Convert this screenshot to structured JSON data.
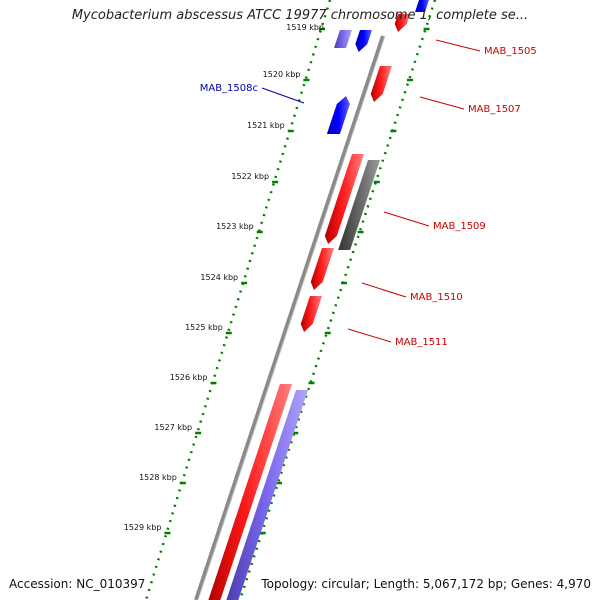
{
  "title": "Mycobacterium abscessus ATCC 19977 chromosome 1, complete se...",
  "footer": {
    "accession": "Accession: NC_010397",
    "summary": "Topology: circular; Length: 5,067,172 bp; Genes: 4,970"
  },
  "colors": {
    "forward_cds": "#ff0000",
    "reverse_cds": "#7b68ee",
    "pseudo": "#666666",
    "other": "#0000ff",
    "ticks": "#008000",
    "label_forward": "#cc0000",
    "label_other": "#0000aa"
  },
  "ticks": [
    {
      "label": "1519 kbp"
    },
    {
      "label": "1520 kbp"
    },
    {
      "label": "1521 kbp"
    },
    {
      "label": "1522 kbp"
    },
    {
      "label": "1523 kbp"
    },
    {
      "label": "1524 kbp"
    },
    {
      "label": "1525 kbp"
    },
    {
      "label": "1526 kbp"
    },
    {
      "label": "1527 kbp"
    },
    {
      "label": "1528 kbp"
    },
    {
      "label": "1529 kbp"
    }
  ],
  "gene_labels": [
    {
      "text": "MAB_1505",
      "color": "#cc0000"
    },
    {
      "text": "MAB_1507",
      "color": "#cc0000"
    },
    {
      "text": "MAB_1508c",
      "color": "#0000aa"
    },
    {
      "text": "MAB_1509",
      "color": "#cc0000"
    },
    {
      "text": "MAB_1510",
      "color": "#cc0000"
    },
    {
      "text": "MAB_1511",
      "color": "#cc0000"
    }
  ]
}
